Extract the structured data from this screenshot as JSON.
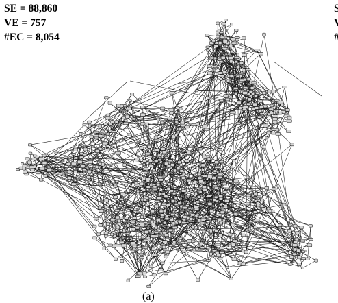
{
  "stats": {
    "se": "SE = 88,860",
    "ve": "VE = 757",
    "ec": "#EC = 8,054"
  },
  "caption": "(a)",
  "edge_peek": [
    "S",
    "V",
    "#"
  ]
}
